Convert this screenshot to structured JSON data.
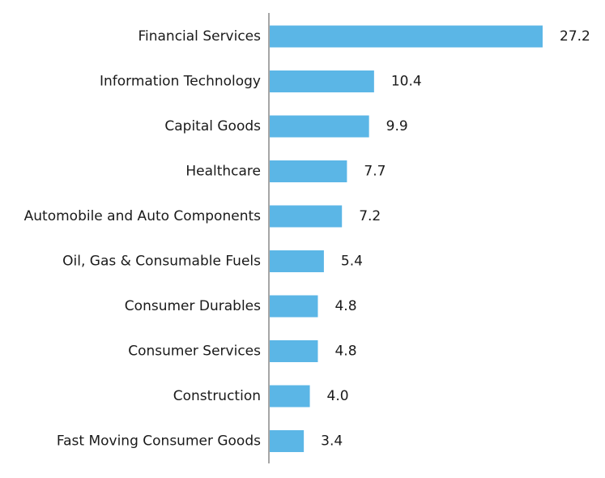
{
  "chart_data": {
    "type": "bar",
    "orientation": "horizontal",
    "categories": [
      "Financial Services",
      "Information Technology",
      "Capital Goods",
      "Healthcare",
      "Automobile and Auto Components",
      "Oil, Gas & Consumable Fuels",
      "Consumer Durables",
      "Consumer Services",
      "Construction",
      "Fast Moving Consumer Goods"
    ],
    "values": [
      27.2,
      10.4,
      9.9,
      7.7,
      7.2,
      5.4,
      4.8,
      4.8,
      4.0,
      3.4
    ],
    "value_labels": [
      "27.2",
      "10.4",
      "9.9",
      "7.7",
      "7.2",
      "5.4",
      "4.8",
      "4.8",
      "4.0",
      "3.4"
    ],
    "title": "",
    "xlabel": "",
    "ylabel": "",
    "xlim": [
      0,
      27.2
    ],
    "grid": false,
    "legend": "none",
    "colors": {
      "bar": "#5bb6e6",
      "axis": "#a6a6a6",
      "text": "#1a1a1a"
    }
  }
}
